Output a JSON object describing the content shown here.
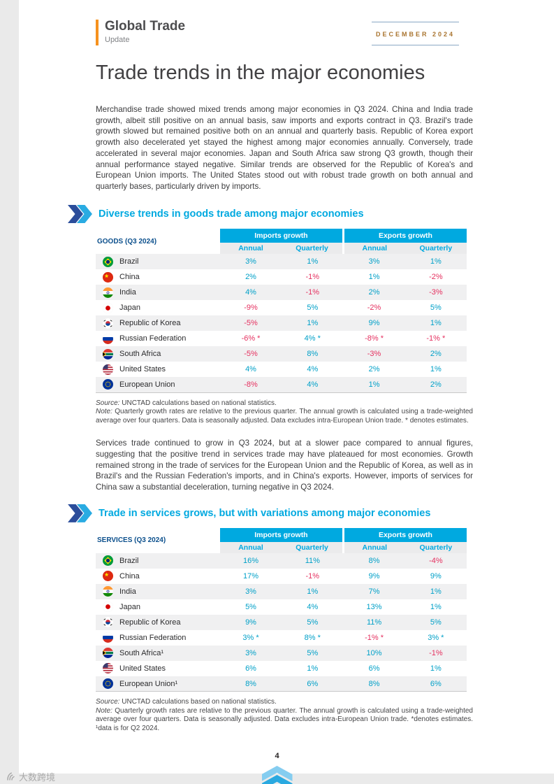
{
  "colors": {
    "accent": "#00a9e0",
    "positive": "#00a0c8",
    "negative": "#e5305f",
    "orange": "#f6921e",
    "gold": "#a9742f",
    "navy": "#0b4f8c"
  },
  "header": {
    "brand_title": "Global Trade",
    "brand_subtitle": "Update",
    "issue_date": "DECEMBER 2024"
  },
  "page": {
    "title": "Trade trends in the major economies",
    "paragraph1": "Merchandise trade showed mixed trends among major economies in Q3 2024. China and India trade growth, albeit still positive on an annual basis, saw imports and exports contract in Q3. Brazil's trade growth slowed but remained positive both on an annual and quarterly basis. Republic of Korea export growth also decelerated yet stayed the highest among major economies annually. Conversely, trade accelerated in several major economies. Japan and South Africa saw strong Q3 growth, though their annual performance stayed negative. Similar trends are observed for the Republic of Korea's and European Union imports. The United States stood out with robust trade growth on both annual and quarterly bases, particularly driven by imports.",
    "paragraph2": "Services trade continued to grow in Q3 2024, but at a slower pace compared to annual figures, suggesting that the positive trend in services trade may have plateaued for most economies. Growth remained strong in the trade of services for the European Union and the Republic of Korea, as well as in Brazil's and the Russian Federation's imports, and in China's exports. However, imports of services for China saw a substantial deceleration, turning negative in Q3 2024.",
    "page_number": "4"
  },
  "section1": {
    "heading": "Diverse trends in goods trade among major economies",
    "table": {
      "corner_label": "GOODS (Q3 2024)",
      "group_headers": [
        "Imports growth",
        "Exports growth"
      ],
      "sub_headers": [
        "Annual",
        "Quarterly",
        "Annual",
        "Quarterly"
      ],
      "rows": [
        {
          "flag": "brazil",
          "country": "Brazil",
          "values": [
            "3%",
            "1%",
            "3%",
            "1%"
          ]
        },
        {
          "flag": "china",
          "country": "China",
          "values": [
            "2%",
            "-1%",
            "1%",
            "-2%"
          ]
        },
        {
          "flag": "india",
          "country": "India",
          "values": [
            "4%",
            "-1%",
            "2%",
            "-3%"
          ]
        },
        {
          "flag": "japan",
          "country": "Japan",
          "values": [
            "-9%",
            "5%",
            "-2%",
            "5%"
          ]
        },
        {
          "flag": "korea",
          "country": "Republic of Korea",
          "values": [
            "-5%",
            "1%",
            "9%",
            "1%"
          ]
        },
        {
          "flag": "russia",
          "country": "Russian Federation",
          "values": [
            "-6% *",
            "4% *",
            "-8% *",
            "-1% *"
          ]
        },
        {
          "flag": "south-africa",
          "country": "South Africa",
          "values": [
            "-5%",
            "8%",
            "-3%",
            "2%"
          ]
        },
        {
          "flag": "usa",
          "country": "United States",
          "values": [
            "4%",
            "4%",
            "2%",
            "1%"
          ]
        },
        {
          "flag": "eu",
          "country": "European Union",
          "values": [
            "-8%",
            "4%",
            "1%",
            "2%"
          ]
        }
      ]
    },
    "source_label": "Source:",
    "source_text": " UNCTAD calculations based on national statistics.",
    "note_label": "Note:",
    "note_text": " Quarterly growth rates are relative to the previous quarter. The annual growth is calculated using a trade-weighted average over four quarters. Data is seasonally adjusted. Data excludes intra-European Union trade. * denotes estimates."
  },
  "section2": {
    "heading": "Trade in services grows, but with variations among major economies",
    "table": {
      "corner_label": "SERVICES (Q3 2024)",
      "group_headers": [
        "Imports growth",
        "Exports growth"
      ],
      "sub_headers": [
        "Annual",
        "Quarterly",
        "Annual",
        "Quarterly"
      ],
      "rows": [
        {
          "flag": "brazil",
          "country": "Brazil",
          "values": [
            "16%",
            "11%",
            "8%",
            "-4%"
          ]
        },
        {
          "flag": "china",
          "country": "China",
          "values": [
            "17%",
            "-1%",
            "9%",
            "9%"
          ]
        },
        {
          "flag": "india",
          "country": "India",
          "values": [
            "3%",
            "1%",
            "7%",
            "1%"
          ]
        },
        {
          "flag": "japan",
          "country": "Japan",
          "values": [
            "5%",
            "4%",
            "13%",
            "1%"
          ]
        },
        {
          "flag": "korea",
          "country": "Republic of Korea",
          "values": [
            "9%",
            "5%",
            "11%",
            "5%"
          ]
        },
        {
          "flag": "russia",
          "country": "Russian Federation",
          "values": [
            "3% *",
            "8% *",
            "-1% *",
            "3% *"
          ]
        },
        {
          "flag": "south-africa",
          "country": "South Africa¹",
          "values": [
            "3%",
            "5%",
            "10%",
            "-1%"
          ]
        },
        {
          "flag": "usa",
          "country": "United States",
          "values": [
            "6%",
            "1%",
            "6%",
            "1%"
          ]
        },
        {
          "flag": "eu",
          "country": "European Union¹",
          "values": [
            "8%",
            "6%",
            "8%",
            "6%"
          ]
        }
      ]
    },
    "source_label": "Source:",
    "source_text": " UNCTAD calculations based on national statistics.",
    "note_label": "Note:",
    "note_text": " Quarterly growth rates are relative to the previous quarter. The annual growth is calculated using a trade-weighted average over four quarters. Data is seasonally adjusted. Data excludes intra-European Union trade. *denotes estimates. ¹data is for Q2 2024."
  },
  "watermark": "大数跨境"
}
